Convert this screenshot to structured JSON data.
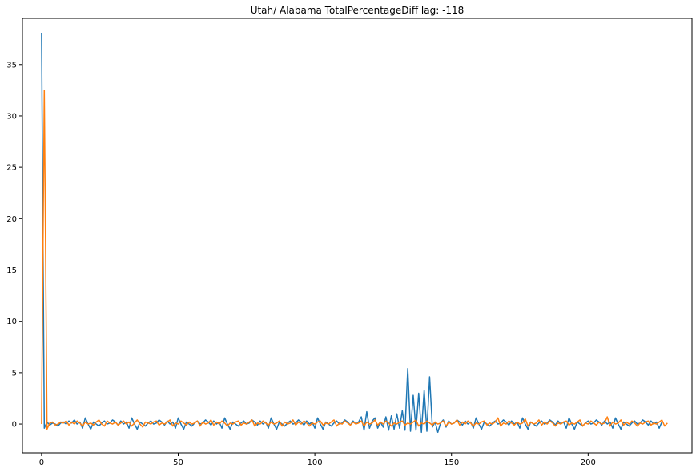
{
  "chart_data": {
    "type": "line",
    "title": "Utah/ Alabama TotalPercentageDiff lag: -118",
    "xlabel": "",
    "ylabel": "",
    "xlim": [
      -7,
      238
    ],
    "ylim": [
      -2.8,
      39.5
    ],
    "x_ticks": [
      0,
      50,
      100,
      150,
      200
    ],
    "y_ticks": [
      0,
      5,
      10,
      15,
      20,
      25,
      30,
      35
    ],
    "grid": false,
    "legend": "none",
    "series": [
      {
        "color": "#1f77b4",
        "x_start": 0,
        "values": [
          38.1,
          -0.4,
          0.2,
          -0.1,
          0.1,
          0.0,
          -0.2,
          0.1,
          0.2,
          0.0,
          0.3,
          0.1,
          0.4,
          0.0,
          0.2,
          -0.4,
          0.6,
          0.0,
          -0.5,
          0.2,
          0.0,
          -0.2,
          0.1,
          0.3,
          0.0,
          0.1,
          0.4,
          0.2,
          -0.1,
          0.3,
          0.0,
          0.2,
          -0.4,
          0.6,
          0.0,
          -0.5,
          0.2,
          0.0,
          -0.2,
          0.1,
          0.3,
          0.0,
          0.1,
          0.4,
          0.2,
          -0.1,
          0.3,
          0.0,
          0.2,
          -0.4,
          0.6,
          0.0,
          -0.5,
          0.2,
          0.0,
          -0.2,
          0.1,
          0.3,
          0.0,
          0.1,
          0.4,
          0.2,
          -0.1,
          0.3,
          0.0,
          0.2,
          -0.4,
          0.6,
          0.0,
          -0.5,
          0.2,
          0.0,
          -0.2,
          0.1,
          0.3,
          0.0,
          0.1,
          0.4,
          0.2,
          -0.1,
          0.3,
          0.0,
          0.2,
          -0.4,
          0.6,
          0.0,
          -0.5,
          0.2,
          0.0,
          -0.2,
          0.1,
          0.3,
          0.0,
          0.1,
          0.4,
          0.2,
          -0.1,
          0.3,
          0.0,
          0.2,
          -0.4,
          0.6,
          0.0,
          -0.5,
          0.2,
          0.0,
          -0.2,
          0.1,
          0.3,
          0.0,
          0.1,
          0.4,
          0.2,
          -0.1,
          0.3,
          0.0,
          0.2,
          0.7,
          -0.6,
          1.2,
          -0.4,
          0.3,
          0.6,
          -0.4,
          0.2,
          -0.3,
          0.7,
          -0.6,
          0.8,
          -0.5,
          1.0,
          -0.4,
          1.3,
          -0.6,
          5.4,
          -0.7,
          2.8,
          -0.6,
          3.0,
          -0.8,
          3.3,
          -0.7,
          4.6,
          -0.3,
          0.2,
          -0.8,
          0.1,
          0.4,
          -0.3,
          0.3,
          0.0,
          0.1,
          0.4,
          0.2,
          -0.1,
          0.3,
          0.0,
          0.2,
          -0.4,
          0.6,
          0.0,
          -0.5,
          0.2,
          0.0,
          -0.2,
          0.1,
          0.3,
          0.0,
          0.1,
          0.4,
          0.2,
          -0.1,
          0.3,
          0.0,
          0.2,
          -0.4,
          0.6,
          0.0,
          -0.5,
          0.2,
          0.0,
          -0.2,
          0.1,
          0.3,
          0.0,
          0.1,
          0.4,
          0.2,
          -0.1,
          0.3,
          0.0,
          0.2,
          -0.4,
          0.6,
          0.0,
          -0.5,
          0.2,
          0.0,
          -0.2,
          0.1,
          0.3,
          0.0,
          0.1,
          0.4,
          0.2,
          -0.1,
          0.3,
          0.0,
          0.2,
          -0.4,
          0.6,
          0.0,
          -0.5,
          0.2,
          0.0,
          -0.2,
          0.1,
          0.3,
          0.0,
          0.1,
          0.4,
          0.2,
          -0.1,
          0.3,
          0.0,
          0.2,
          -0.4,
          0.2
        ]
      },
      {
        "color": "#ff7f0e",
        "x_start": 0,
        "values": [
          0.0,
          32.5,
          -0.5,
          0.1,
          0.2,
          -0.1,
          0.0,
          0.2,
          0.1,
          0.3,
          -0.1,
          0.2,
          0.0,
          0.3,
          0.1,
          -0.2,
          0.2,
          0.0,
          0.1,
          -0.1,
          0.2,
          0.4,
          0.0,
          -0.2,
          0.3,
          0.1,
          0.0,
          0.2,
          -0.1,
          0.1,
          0.3,
          0.0,
          0.2,
          -0.2,
          0.1,
          0.4,
          0.0,
          -0.3,
          0.2,
          0.1,
          0.0,
          0.2,
          0.3,
          -0.1,
          0.1,
          0.0,
          0.2,
          0.4,
          -0.2,
          0.1,
          0.0,
          0.3,
          0.1,
          -0.1,
          0.2,
          0.0,
          0.1,
          0.3,
          -0.2,
          0.2,
          0.0,
          0.1,
          0.4,
          -0.1,
          0.2,
          0.0,
          0.3,
          0.1,
          -0.2,
          0.1,
          0.0,
          0.2,
          0.3,
          -0.1,
          0.1,
          0.0,
          0.2,
          0.4,
          -0.2,
          0.1,
          0.0,
          0.3,
          0.1,
          -0.1,
          0.2,
          0.0,
          0.1,
          0.3,
          -0.2,
          0.2,
          0.0,
          0.1,
          0.4,
          -0.1,
          0.2,
          0.0,
          0.3,
          0.1,
          -0.2,
          0.1,
          0.0,
          0.2,
          0.3,
          -0.1,
          0.1,
          0.0,
          0.2,
          0.4,
          -0.2,
          0.1,
          0.0,
          0.3,
          0.1,
          -0.1,
          0.2,
          0.0,
          0.1,
          0.3,
          -0.2,
          0.2,
          0.0,
          0.1,
          0.4,
          -0.1,
          0.2,
          0.0,
          0.3,
          0.1,
          -0.2,
          0.1,
          0.0,
          0.2,
          0.3,
          -0.1,
          0.1,
          0.0,
          0.2,
          0.4,
          -0.2,
          0.1,
          0.0,
          0.3,
          0.1,
          -0.1,
          0.2,
          0.0,
          0.1,
          0.3,
          -0.2,
          0.2,
          0.0,
          0.1,
          0.4,
          -0.1,
          0.2,
          0.0,
          0.3,
          0.1,
          -0.2,
          0.1,
          0.0,
          0.2,
          0.3,
          -0.1,
          0.1,
          0.0,
          0.2,
          0.6,
          -0.2,
          0.1,
          0.0,
          0.3,
          0.1,
          -0.1,
          0.2,
          0.0,
          0.1,
          0.5,
          -0.2,
          0.2,
          0.0,
          0.1,
          0.4,
          -0.1,
          0.2,
          0.0,
          0.3,
          0.1,
          -0.2,
          0.1,
          0.0,
          0.2,
          0.3,
          -0.1,
          0.1,
          0.0,
          0.2,
          0.4,
          -0.2,
          0.1,
          0.0,
          0.3,
          0.1,
          -0.1,
          0.2,
          0.0,
          0.1,
          0.7,
          -0.2,
          0.2,
          0.0,
          0.1,
          0.4,
          -0.1,
          0.2,
          0.0,
          0.3,
          0.1,
          -0.2,
          0.1,
          0.0,
          0.2,
          0.3,
          -0.1,
          0.1,
          0.0,
          0.2,
          0.4,
          -0.2,
          0.1
        ]
      }
    ]
  }
}
